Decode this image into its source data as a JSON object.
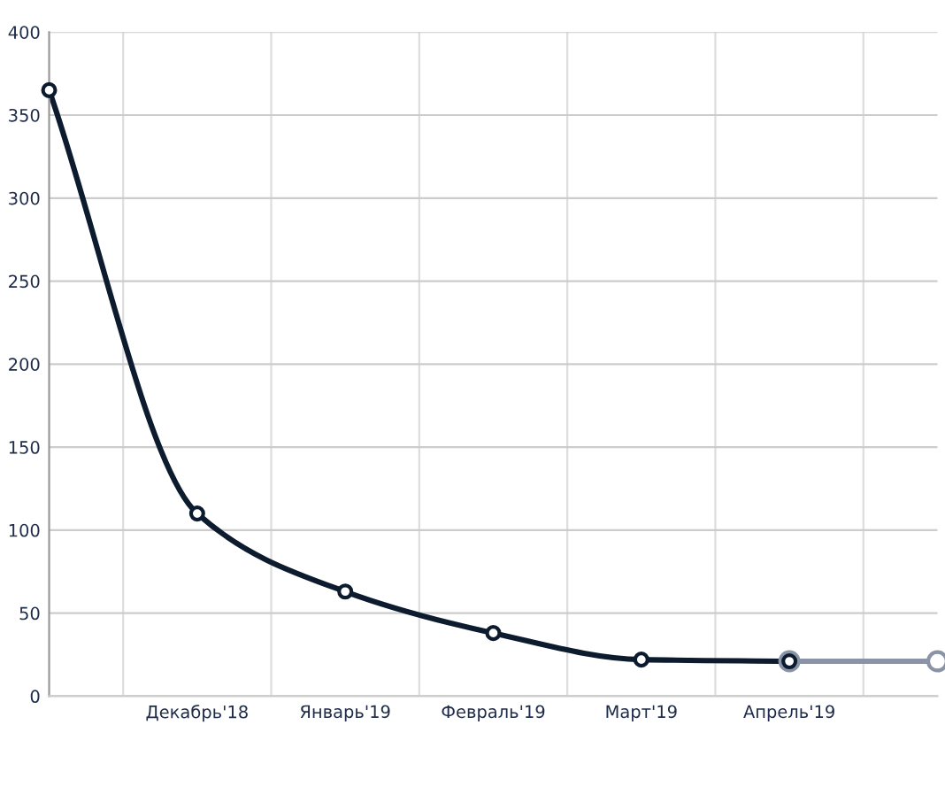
{
  "chart_data": {
    "type": "line",
    "categories": [
      null,
      "Декабрь'18",
      "Январь'19",
      "Февраль'19",
      "Март'19",
      "Апрель'19",
      null
    ],
    "series": [
      {
        "color": "#0d1b2e",
        "values": [
          365,
          110,
          63,
          38,
          22,
          21,
          null
        ]
      },
      {
        "color": "#8a94a6",
        "values": [
          null,
          null,
          null,
          null,
          null,
          21,
          21
        ]
      }
    ],
    "ylim": [
      0,
      400
    ],
    "yticks": [
      0,
      50,
      100,
      150,
      200,
      250,
      300,
      350,
      400
    ],
    "grid": true,
    "marker": "circle",
    "line_style": "solid",
    "legend": false
  }
}
